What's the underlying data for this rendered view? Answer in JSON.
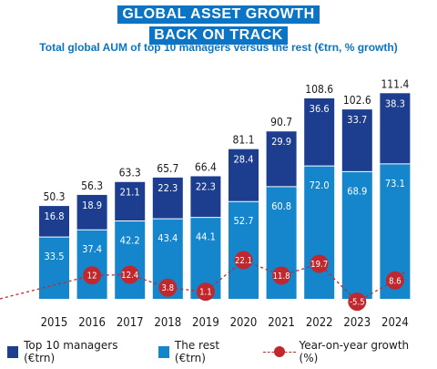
{
  "title": {
    "line1": "GLOBAL ASSET GROWTH",
    "line2": "BACK ON TRACK"
  },
  "subtitle": "Total global AUM of top 10 managers versus the rest (€trn, % growth)",
  "legend": {
    "top10": "Top 10 managers (€trn)",
    "rest": "The rest (€trn)",
    "growth": "Year-on-year growth (%)"
  },
  "colors": {
    "top10": "#1d3e8f",
    "rest": "#1585cc",
    "growth": "#c0282d",
    "title_bg": "#0b74c4"
  },
  "chart_data": {
    "type": "bar",
    "stacked": true,
    "categories": [
      "2015",
      "2016",
      "2017",
      "2018",
      "2019",
      "2020",
      "2021",
      "2022",
      "2023",
      "2024"
    ],
    "series": [
      {
        "name": "The rest (€trn)",
        "values": [
          33.5,
          37.4,
          42.2,
          43.4,
          44.1,
          52.7,
          60.8,
          72.0,
          68.9,
          73.1
        ],
        "labels": [
          "33.5",
          "37.4",
          "42.2",
          "43.4",
          "44.1",
          "52.7",
          "60.8",
          "72.0",
          "68.9",
          "73.1"
        ]
      },
      {
        "name": "Top 10 managers (€trn)",
        "values": [
          16.8,
          18.9,
          21.1,
          22.3,
          22.3,
          28.4,
          29.9,
          36.6,
          33.7,
          38.3
        ],
        "labels": [
          "16.8",
          "18.9",
          "21.1",
          "22.3",
          "22.3",
          "28.4",
          "29.9",
          "36.6",
          "33.7",
          "38.3"
        ]
      }
    ],
    "totals": [
      "50.3",
      "56.3",
      "63.3",
      "65.7",
      "66.4",
      "81.1",
      "90.7",
      "108.6",
      "102.6",
      "111.4"
    ],
    "growth": {
      "name": "Year-on-year growth (%)",
      "values": [
        null,
        12,
        12.4,
        3.8,
        1.1,
        22.1,
        11.8,
        19.7,
        -5.5,
        8.6
      ],
      "labels": [
        "",
        "12",
        "12.4",
        "3.8",
        "1.1",
        "22.1",
        "11.8",
        "19.7",
        "-5.5",
        "8.6"
      ]
    },
    "title": "GLOBAL ASSET GROWTH BACK ON TRACK",
    "xlabel": "",
    "ylabel": "",
    "ylim": [
      0,
      115
    ],
    "grid": false,
    "legend_position": "bottom"
  }
}
